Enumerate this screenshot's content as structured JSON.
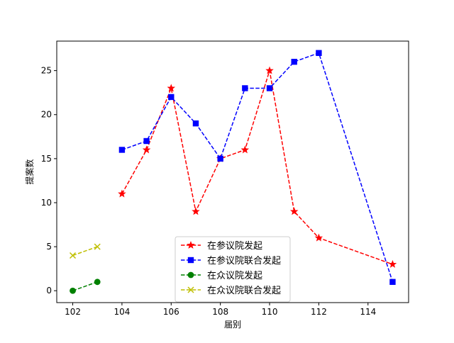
{
  "chart_data": {
    "type": "line",
    "title": "",
    "xlabel": "届别",
    "ylabel": "提案数",
    "xlim": [
      101.35,
      115.65
    ],
    "ylim": [
      -1.35,
      28.35
    ],
    "xticks": [
      102,
      104,
      106,
      108,
      110,
      112,
      114
    ],
    "yticks": [
      0,
      5,
      10,
      15,
      20,
      25
    ],
    "grid": false,
    "legend_position": "lower-center",
    "series": [
      {
        "name": "在参议院发起",
        "color": "#ff0000",
        "marker": "star",
        "linestyle": "dashed",
        "x": [
          104,
          105,
          106,
          107,
          108,
          109,
          110,
          111,
          112,
          115
        ],
        "y": [
          11,
          16,
          23,
          9,
          15,
          16,
          25,
          9,
          6,
          3
        ]
      },
      {
        "name": "在参议院联合发起",
        "color": "#0000ff",
        "marker": "square",
        "linestyle": "dashed",
        "x": [
          104,
          105,
          106,
          107,
          108,
          109,
          110,
          111,
          112,
          115
        ],
        "y": [
          16,
          17,
          22,
          19,
          15,
          23,
          23,
          26,
          27,
          1
        ]
      },
      {
        "name": "在众议院发起",
        "color": "#008000",
        "marker": "circle",
        "linestyle": "dashed",
        "x": [
          102,
          103
        ],
        "y": [
          0,
          1
        ]
      },
      {
        "name": "在众议院联合发起",
        "color": "#bfbf00",
        "marker": "x",
        "linestyle": "dashed",
        "x": [
          102,
          103
        ],
        "y": [
          4,
          5
        ]
      }
    ]
  }
}
